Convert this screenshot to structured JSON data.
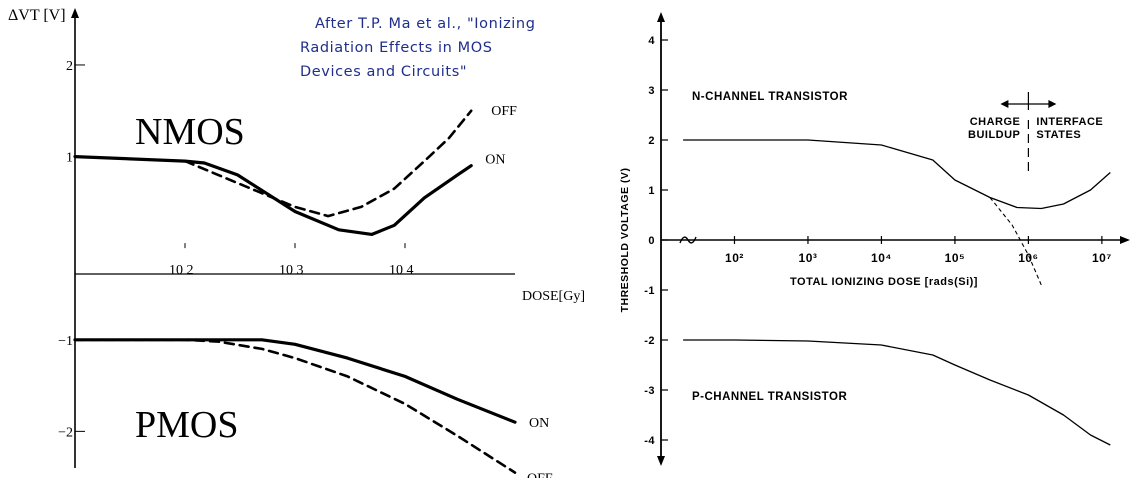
{
  "citation": {
    "lines": [
      "After T.P. Ma et al., \"Ionizing",
      "Radiation Effects in MOS",
      "Devices and Circuits\""
    ]
  },
  "chart_data": [
    {
      "type": "line",
      "ylabel": "ΔVT [V]",
      "xlabel": "DOSE[Gy]",
      "xscale": "log",
      "xlim": [
        10,
        100000
      ],
      "ylim": [
        -2.4,
        2.6
      ],
      "x_ticks": [
        100,
        1000,
        10000
      ],
      "x_tick_labels": [
        "10 2",
        "10 3",
        "10 4"
      ],
      "y_ticks": [
        2,
        1,
        -1,
        -2
      ],
      "y_tick_labels": [
        "2",
        "1",
        "−1",
        "−2"
      ],
      "annotations": [
        "NMOS",
        "PMOS"
      ],
      "series": [
        {
          "name": "ON",
          "group": "NMOS",
          "style": "solid",
          "x": [
            10,
            100,
            150,
            300,
            1000,
            2500,
            5000,
            8000,
            15000,
            30000,
            40000
          ],
          "y": [
            1.0,
            0.95,
            0.93,
            0.8,
            0.4,
            0.2,
            0.15,
            0.25,
            0.55,
            0.8,
            0.9
          ]
        },
        {
          "name": "OFF",
          "group": "NMOS",
          "style": "dashed",
          "x": [
            100,
            200,
            500,
            1000,
            2000,
            4000,
            8000,
            15000,
            25000,
            40000
          ],
          "y": [
            0.95,
            0.8,
            0.6,
            0.45,
            0.35,
            0.45,
            0.65,
            0.95,
            1.2,
            1.5
          ]
        },
        {
          "name": "ON",
          "group": "PMOS",
          "style": "solid",
          "x": [
            10,
            100,
            200,
            500,
            1000,
            3000,
            10000,
            30000,
            100000
          ],
          "y": [
            -1.0,
            -1.0,
            -1.0,
            -1.0,
            -1.05,
            -1.2,
            -1.4,
            -1.65,
            -1.9
          ]
        },
        {
          "name": "OFF",
          "group": "PMOS",
          "style": "dashed",
          "x": [
            10,
            100,
            200,
            500,
            1000,
            3000,
            10000,
            30000,
            100000
          ],
          "y": [
            -1.0,
            -1.0,
            -1.02,
            -1.1,
            -1.2,
            -1.4,
            -1.7,
            -2.05,
            -2.45
          ]
        }
      ]
    },
    {
      "type": "line",
      "ylabel": "THRESHOLD VOLTAGE (V)",
      "xlabel": "TOTAL IONIZING DOSE [rads(Si)]",
      "xscale": "log",
      "xlim": [
        10,
        20000000
      ],
      "ylim": [
        -4.5,
        4.5
      ],
      "x_ticks": [
        100,
        1000,
        10000,
        100000,
        1000000,
        10000000
      ],
      "x_tick_labels": [
        "10²",
        "10³",
        "10⁴",
        "10⁵",
        "10⁶",
        "10⁷"
      ],
      "y_ticks": [
        4,
        3,
        2,
        1,
        0,
        -1,
        -2,
        -3,
        -4
      ],
      "y_tick_labels": [
        "4",
        "3",
        "2",
        "1",
        "0",
        "-1",
        "-2",
        "-3",
        "-4"
      ],
      "annotations": [
        "N-CHANNEL TRANSISTOR",
        "P-CHANNEL TRANSISTOR",
        "CHARGE BUILDUP",
        "INTERFACE STATES"
      ],
      "series": [
        {
          "name": "N-CHANNEL TRANSISTOR",
          "style": "solid",
          "x": [
            20,
            100,
            1000,
            10000,
            50000,
            100000,
            300000,
            700000,
            1500000,
            3000000,
            7000000,
            13000000
          ],
          "y": [
            2.0,
            2.0,
            2.0,
            1.9,
            1.6,
            1.2,
            0.85,
            0.65,
            0.63,
            0.72,
            1.0,
            1.35
          ]
        },
        {
          "name": "extrapolation",
          "style": "dashed",
          "x": [
            300000,
            600000,
            1000000,
            1500000
          ],
          "y": [
            0.85,
            0.3,
            -0.3,
            -0.9
          ]
        },
        {
          "name": "P-CHANNEL TRANSISTOR",
          "style": "solid",
          "x": [
            20,
            100,
            1000,
            10000,
            50000,
            100000,
            300000,
            1000000,
            3000000,
            7000000,
            13000000
          ],
          "y": [
            -2.0,
            -2.0,
            -2.02,
            -2.1,
            -2.3,
            -2.5,
            -2.8,
            -3.1,
            -3.5,
            -3.9,
            -4.1
          ]
        }
      ]
    }
  ]
}
